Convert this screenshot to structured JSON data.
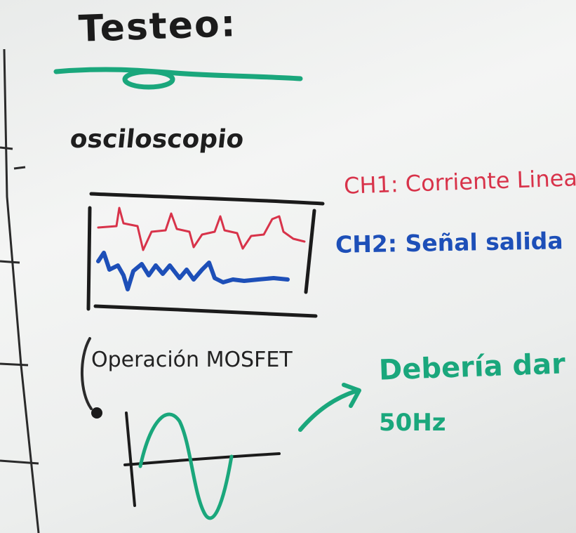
{
  "board": {
    "title": "Testeo:",
    "device_label": "osciloscopio",
    "channels": {
      "ch1": "CH1: Corriente Linea",
      "ch2": "CH2: Señal salida"
    },
    "operation_label": "Operación MOSFET",
    "expectation_line1": "Debería dar",
    "expectation_line2": "50Hz"
  },
  "colors": {
    "marker_black": "#1b1b1b",
    "marker_red": "#d8334a",
    "marker_blue": "#1d4fb8",
    "marker_green": "#1aa77c",
    "board_white": "#eef0ef"
  }
}
